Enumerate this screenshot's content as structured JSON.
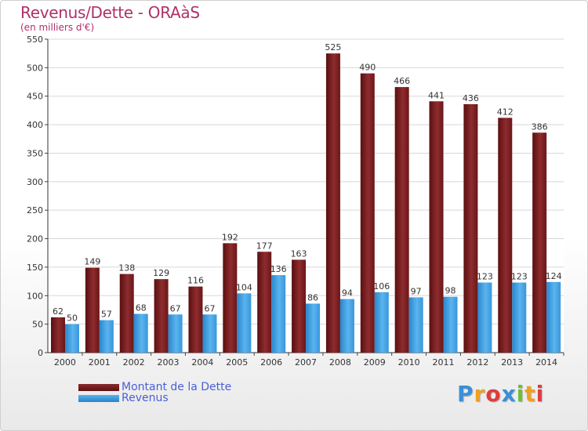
{
  "header": {
    "title": "Revenus/Dette - ORAàS",
    "subtitle": "(en milliers d'€)"
  },
  "chart_data": {
    "type": "bar",
    "categories": [
      "2000",
      "2001",
      "2002",
      "2003",
      "2004",
      "2005",
      "2006",
      "2007",
      "2008",
      "2009",
      "2010",
      "2011",
      "2012",
      "2013",
      "2014"
    ],
    "series": [
      {
        "name": "Montant de la Dette",
        "color": "#7a1b1d",
        "values": [
          62,
          149,
          138,
          129,
          116,
          192,
          177,
          163,
          525,
          490,
          466,
          441,
          436,
          412,
          386
        ]
      },
      {
        "name": "Revenus",
        "color": "#3d9ce2",
        "values": [
          50,
          57,
          68,
          67,
          67,
          104,
          136,
          86,
          94,
          106,
          97,
          98,
          123,
          123,
          124
        ]
      }
    ],
    "title": "Revenus/Dette - ORAàS",
    "ylabel": "",
    "xlabel": "",
    "ylim": [
      0,
      550
    ],
    "yticks": [
      0,
      50,
      100,
      150,
      200,
      250,
      300,
      350,
      400,
      450,
      500,
      550
    ],
    "grid": true,
    "legend_position": "bottom-left"
  },
  "legend": {
    "items": [
      {
        "label": "Montant de la Dette",
        "color": "#7a1b1d"
      },
      {
        "label": "Revenus",
        "color": "#3d9ce2"
      }
    ]
  },
  "logo": {
    "letters": [
      "P",
      "r",
      "o",
      "x",
      "i",
      "t",
      "i"
    ],
    "colors": [
      "#3a8fd8",
      "#f0a020",
      "#e03c3c",
      "#3a8fd8",
      "#6cbf3a",
      "#f0a020",
      "#e03c3c"
    ]
  }
}
